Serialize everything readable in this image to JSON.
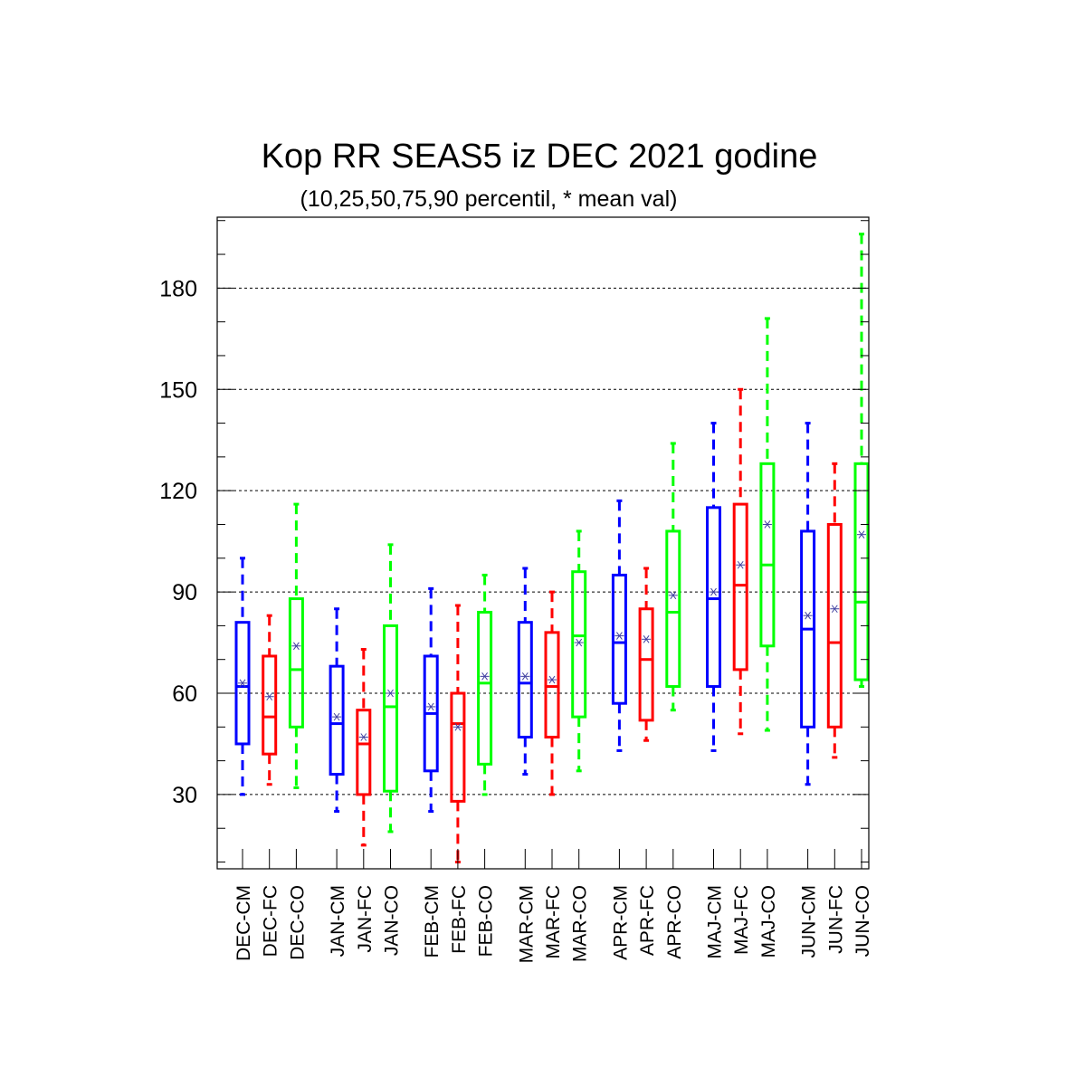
{
  "chart_data": {
    "type": "boxplot",
    "title": "Kop RR SEAS5 iz DEC 2021 godine",
    "subtitle": "(10,25,50,75,90 percentil, * mean val)",
    "ylim": [
      8,
      201
    ],
    "yticks": [
      30,
      60,
      90,
      120,
      150,
      180
    ],
    "grid": "horizontal dashed at major ticks",
    "colors": {
      "CM": "#0000ff",
      "FC": "#ff0000",
      "CO": "#00ff00",
      "mean_marker": "#4040a0"
    },
    "categories": [
      "DEC-CM",
      "DEC-FC",
      "DEC-CO",
      "JAN-CM",
      "JAN-FC",
      "JAN-CO",
      "FEB-CM",
      "FEB-FC",
      "FEB-CO",
      "MAR-CM",
      "MAR-FC",
      "MAR-CO",
      "APR-CM",
      "APR-FC",
      "APR-CO",
      "MAJ-CM",
      "MAJ-FC",
      "MAJ-CO",
      "JUN-CM",
      "JUN-FC",
      "JUN-CO"
    ],
    "boxes": [
      {
        "kind": "CM",
        "p10": 30,
        "p25": 45,
        "p50": 62,
        "p75": 81,
        "p90": 100,
        "mean": 63
      },
      {
        "kind": "FC",
        "p10": 33,
        "p25": 42,
        "p50": 53,
        "p75": 71,
        "p90": 83,
        "mean": 59
      },
      {
        "kind": "CO",
        "p10": 32,
        "p25": 50,
        "p50": 67,
        "p75": 88,
        "p90": 116,
        "mean": 74
      },
      {
        "kind": "CM",
        "p10": 25,
        "p25": 36,
        "p50": 51,
        "p75": 68,
        "p90": 85,
        "mean": 53
      },
      {
        "kind": "FC",
        "p10": 15,
        "p25": 30,
        "p50": 45,
        "p75": 55,
        "p90": 73,
        "mean": 47
      },
      {
        "kind": "CO",
        "p10": 19,
        "p25": 31,
        "p50": 56,
        "p75": 80,
        "p90": 104,
        "mean": 60
      },
      {
        "kind": "CM",
        "p10": 25,
        "p25": 37,
        "p50": 54,
        "p75": 71,
        "p90": 91,
        "mean": 56
      },
      {
        "kind": "FC",
        "p10": 10,
        "p25": 28,
        "p50": 51,
        "p75": 60,
        "p90": 86,
        "mean": 50
      },
      {
        "kind": "CO",
        "p10": 30,
        "p25": 39,
        "p50": 63,
        "p75": 84,
        "p90": 95,
        "mean": 65
      },
      {
        "kind": "CM",
        "p10": 36,
        "p25": 47,
        "p50": 63,
        "p75": 81,
        "p90": 97,
        "mean": 65
      },
      {
        "kind": "FC",
        "p10": 30,
        "p25": 47,
        "p50": 62,
        "p75": 78,
        "p90": 90,
        "mean": 64
      },
      {
        "kind": "CO",
        "p10": 37,
        "p25": 53,
        "p50": 77,
        "p75": 96,
        "p90": 108,
        "mean": 75
      },
      {
        "kind": "CM",
        "p10": 43,
        "p25": 57,
        "p50": 75,
        "p75": 95,
        "p90": 117,
        "mean": 77
      },
      {
        "kind": "FC",
        "p10": 46,
        "p25": 52,
        "p50": 70,
        "p75": 85,
        "p90": 97,
        "mean": 76
      },
      {
        "kind": "CO",
        "p10": 55,
        "p25": 62,
        "p50": 84,
        "p75": 108,
        "p90": 134,
        "mean": 89
      },
      {
        "kind": "CM",
        "p10": 43,
        "p25": 62,
        "p50": 88,
        "p75": 115,
        "p90": 140,
        "mean": 90
      },
      {
        "kind": "FC",
        "p10": 48,
        "p25": 67,
        "p50": 92,
        "p75": 116,
        "p90": 150,
        "mean": 98
      },
      {
        "kind": "CO",
        "p10": 49,
        "p25": 74,
        "p50": 98,
        "p75": 128,
        "p90": 171,
        "mean": 110
      },
      {
        "kind": "CM",
        "p10": 33,
        "p25": 50,
        "p50": 79,
        "p75": 108,
        "p90": 140,
        "mean": 83
      },
      {
        "kind": "FC",
        "p10": 41,
        "p25": 50,
        "p50": 75,
        "p75": 110,
        "p90": 128,
        "mean": 85
      },
      {
        "kind": "CO",
        "p10": 62,
        "p25": 64,
        "p50": 87,
        "p75": 128,
        "p90": 196,
        "mean": 107
      }
    ]
  }
}
